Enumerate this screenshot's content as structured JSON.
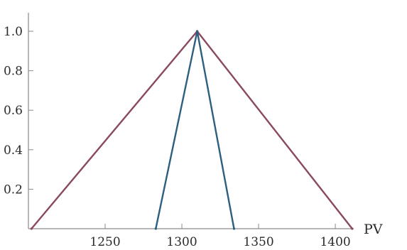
{
  "chart_data": {
    "type": "line",
    "title": "",
    "xlabel": "PV",
    "ylabel": "",
    "xlim": [
      1200,
      1412
    ],
    "ylim": [
      0,
      1.0
    ],
    "x_ticks": [
      {
        "value": 1250,
        "label": "1250"
      },
      {
        "value": 1300,
        "label": "1300"
      },
      {
        "value": 1350,
        "label": "1350"
      },
      {
        "value": 1400,
        "label": "1400"
      }
    ],
    "y_ticks": [
      {
        "value": 0.2,
        "label": "0.2"
      },
      {
        "value": 0.4,
        "label": "0.4"
      },
      {
        "value": 0.6,
        "label": "0.6"
      },
      {
        "value": 0.8,
        "label": "0.8"
      },
      {
        "value": 1.0,
        "label": "1.0"
      }
    ],
    "grid": false,
    "series": [
      {
        "color": "#8b4a5c",
        "points": [
          [
            1202,
            0
          ],
          [
            1310,
            1.0
          ],
          [
            1411,
            0
          ]
        ]
      },
      {
        "color": "#2e5f7f",
        "points": [
          [
            1283,
            0
          ],
          [
            1310,
            1.0
          ],
          [
            1334,
            0
          ]
        ]
      }
    ]
  }
}
